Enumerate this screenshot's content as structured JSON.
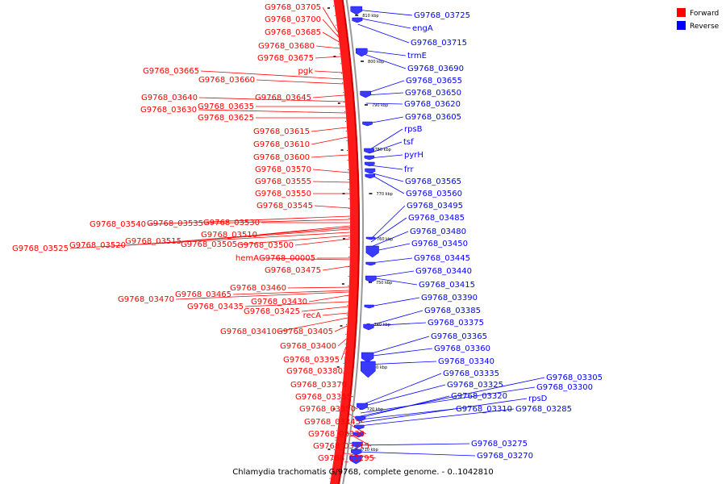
{
  "caption": "Chlamydia trachomatis G/9768, complete genome. - 0..1042810",
  "legend": [
    {
      "label": "Forward",
      "color": "#ff0000"
    },
    {
      "label": "Reverse",
      "color": "#0000ff"
    }
  ],
  "colors": {
    "forward": "#ff0000",
    "reverse": "#0000ff",
    "reverse_fill": "#3a3aff",
    "backbone": "#ff1a1a",
    "backbone_dark": "#cc0000"
  },
  "ticks": [
    "810 kbp",
    "800 kbp",
    "790 kbp",
    "780 kbp",
    "770 kbp",
    "760 kbp",
    "750 kbp",
    "740 kbp",
    "730 kbp",
    "720 kbp",
    "710 kbp"
  ],
  "forward_labels": [
    "G9768_03705",
    "G9768_03700",
    "G9768_03685",
    "G9768_03680",
    "G9768_03675",
    "G9768_03665",
    "pgk",
    "G9768_03660",
    "G9768_03645",
    "G9768_03640",
    "G9768_03635",
    "G9768_03630",
    "G9768_03625",
    "G9768_03615",
    "G9768_03610",
    "G9768_03600",
    "G9768_03570",
    "G9768_03555",
    "G9768_03550",
    "G9768_03545",
    "G9768_03540",
    "G9768_03535",
    "G9768_03530",
    "G9768_03525",
    "G9768_03520",
    "G9768_03515",
    "G9768_03510",
    "G9768_03505",
    "G9768_03500",
    "hemA",
    "G9768_00005",
    "G9768_03475",
    "G9768_03460",
    "G9768_03470",
    "G9768_03465",
    "G9768_03430",
    "G9768_03435",
    "G9768_03425",
    "recA",
    "G9768_03410",
    "G9768_03405",
    "G9768_03400",
    "G9768_03395",
    "G9768_03380",
    "G9768_03370",
    "G9768_03355",
    "G9768_03350",
    "G9768_03345",
    "G9768_03330",
    "G9768_03315",
    "G9768_03295"
  ],
  "reverse_labels": [
    "G9768_03725",
    "engA",
    "G9768_03715",
    "trmE",
    "G9768_03690",
    "G9768_03655",
    "G9768_03650",
    "G9768_03620",
    "G9768_03605",
    "rpsB",
    "tsf",
    "pyrH",
    "frr",
    "G9768_03565",
    "G9768_03560",
    "G9768_03495",
    "G9768_03485",
    "G9768_03480",
    "G9768_03450",
    "G9768_03445",
    "G9768_03440",
    "G9768_03415",
    "G9768_03390",
    "G9768_03385",
    "G9768_03375",
    "G9768_03365",
    "G9768_03360",
    "G9768_03340",
    "G9768_03335",
    "G9768_03325",
    "G9768_03320",
    "G9768_03310",
    "G9768_03285",
    "G9768_03305",
    "G9768_03300",
    "rpsD",
    "G9768_03275",
    "G9768_03270"
  ]
}
